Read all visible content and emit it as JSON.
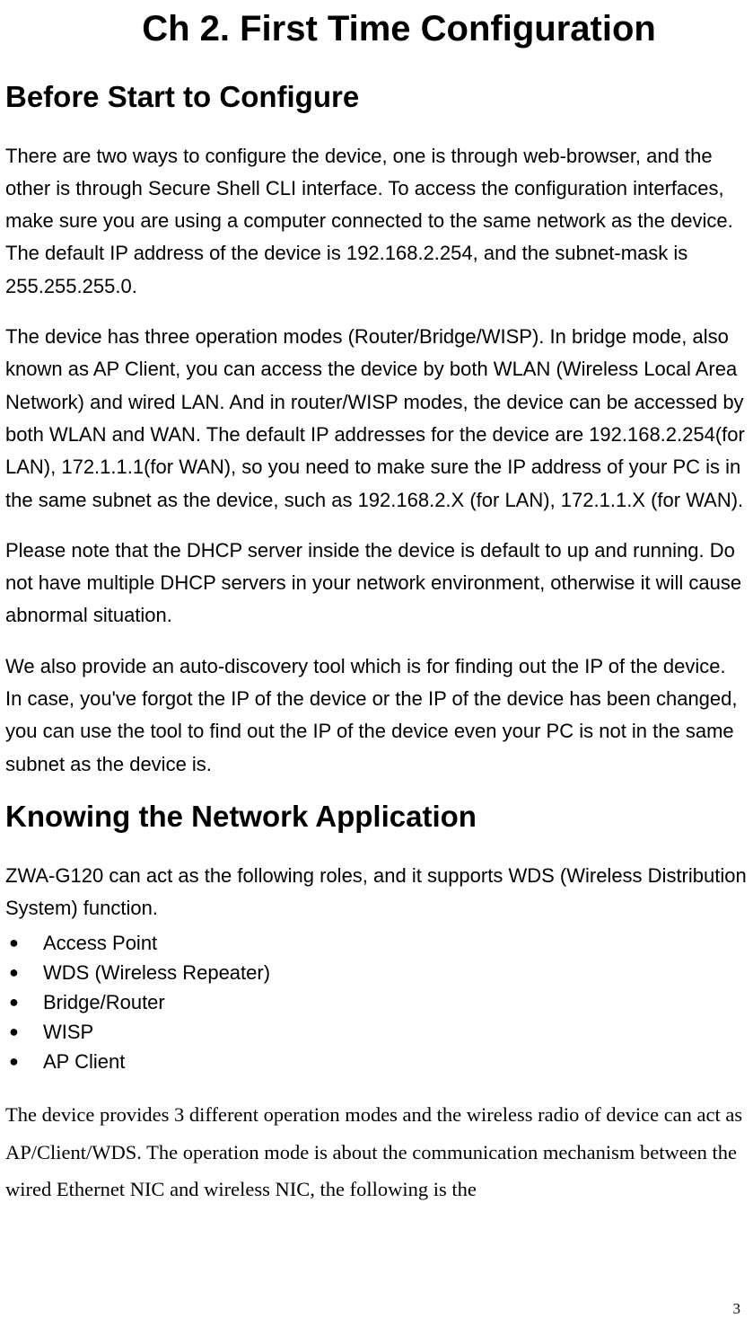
{
  "chapter": {
    "title": "Ch 2. First Time Configuration"
  },
  "sections": {
    "before": {
      "heading": "Before Start to Configure",
      "p1": "There are two ways to configure the device, one is through web-browser, and the other is through Secure Shell CLI interface. To access the configuration interfaces, make sure you are using a computer connected to the same network as the device. The default IP address of the device is 192.168.2.254, and the subnet-mask is 255.255.255.0.",
      "p2": "The device has three operation modes (Router/Bridge/WISP). In bridge mode, also known as AP Client, you can access the device by both WLAN (Wireless Local Area Network) and wired LAN. And in router/WISP modes, the device can be accessed by both WLAN and WAN. The default IP addresses for the device are 192.168.2.254(for LAN), 172.1.1.1(for WAN), so you need to make sure the IP address of your PC is in the same subnet as the device, such as 192.168.2.X (for LAN), 172.1.1.X (for WAN).",
      "p3": "Please note that the DHCP server inside the device is default to up and running. Do not have multiple DHCP servers in your network environment, otherwise it will cause abnormal situation.",
      "p4": "We also provide an auto-discovery tool which is for finding out the IP of the device. In case, you've forgot the IP of the device or the IP of the device has been changed, you can use the tool to find out the IP of the device even your PC is not in the same subnet as the device is."
    },
    "knowing": {
      "heading": "Knowing the Network Application",
      "intro": "ZWA-G120 can act as the following roles, and it supports WDS (Wireless Distribution System) function.",
      "bullets": {
        "b1": "Access Point",
        "b2": "WDS (Wireless Repeater)",
        "b3": "Bridge/Router",
        "b4": "WISP",
        "b5": "AP Client"
      },
      "closing": "The device provides 3 different operation modes and the wireless radio of device can act as AP/Client/WDS. The operation mode is about the communication mechanism between the wired Ethernet NIC and wireless NIC, the following is the"
    }
  },
  "page_number": "3"
}
